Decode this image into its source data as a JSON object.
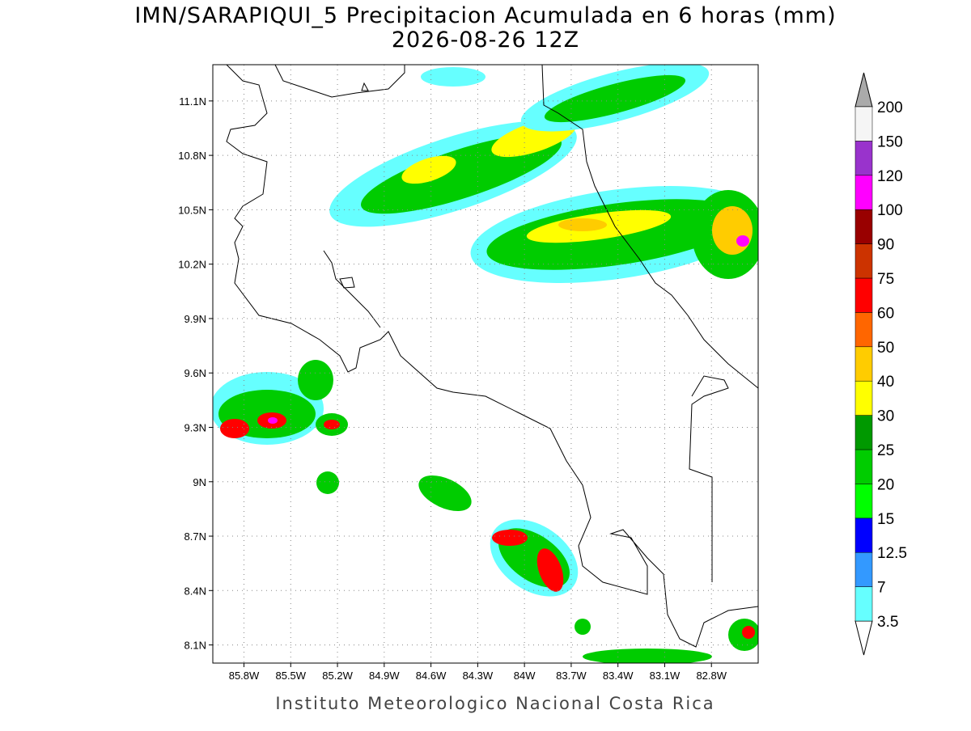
{
  "map": {
    "title": "IMN/SARAPIQUI_5 Precipitacion Acumulada en 6 horas (mm)",
    "subtitle": "2026-08-26 12Z",
    "xlim": [
      -86.0,
      -82.5
    ],
    "ylim": [
      8.0,
      11.3
    ],
    "xticks": [
      {
        "value": -85.8,
        "label": "85.8W"
      },
      {
        "value": -85.5,
        "label": "85.5W"
      },
      {
        "value": -85.2,
        "label": "85.2W"
      },
      {
        "value": -84.9,
        "label": "84.9W"
      },
      {
        "value": -84.6,
        "label": "84.6W"
      },
      {
        "value": -84.3,
        "label": "84.3W"
      },
      {
        "value": -84.0,
        "label": "84W"
      },
      {
        "value": -83.7,
        "label": "83.7W"
      },
      {
        "value": -83.4,
        "label": "83.4W"
      },
      {
        "value": -83.1,
        "label": "83.1W"
      },
      {
        "value": -82.8,
        "label": "82.8W"
      }
    ],
    "yticks": [
      {
        "value": 8.1,
        "label": "8.1N"
      },
      {
        "value": 8.4,
        "label": "8.4N"
      },
      {
        "value": 8.7,
        "label": "8.7N"
      },
      {
        "value": 9.0,
        "label": "9N"
      },
      {
        "value": 9.3,
        "label": "9.3N"
      },
      {
        "value": 9.6,
        "label": "9.6N"
      },
      {
        "value": 9.9,
        "label": "9.9N"
      },
      {
        "value": 10.2,
        "label": "10.2N"
      },
      {
        "value": 10.5,
        "label": "10.5N"
      },
      {
        "value": 10.8,
        "label": "10.8N"
      },
      {
        "value": 11.1,
        "label": "11.1N"
      }
    ],
    "grid": true,
    "colorbar": {
      "levels": [
        3.5,
        7,
        12.5,
        15,
        20,
        25,
        30,
        40,
        50,
        60,
        75,
        90,
        100,
        120,
        150,
        200
      ],
      "colors": [
        "#66ffff",
        "#3399ff",
        "#0000ff",
        "#00ff00",
        "#00cc00",
        "#009900",
        "#ffff00",
        "#ffcc00",
        "#ff6600",
        "#ff0000",
        "#cc3300",
        "#990000",
        "#ff00ff",
        "#9933cc",
        "#f5f5f5"
      ],
      "under_color": "#ffffff",
      "over_color": "#aaaaaa"
    },
    "footer": "Instituto Meteorologico Nacional Costa Rica"
  }
}
